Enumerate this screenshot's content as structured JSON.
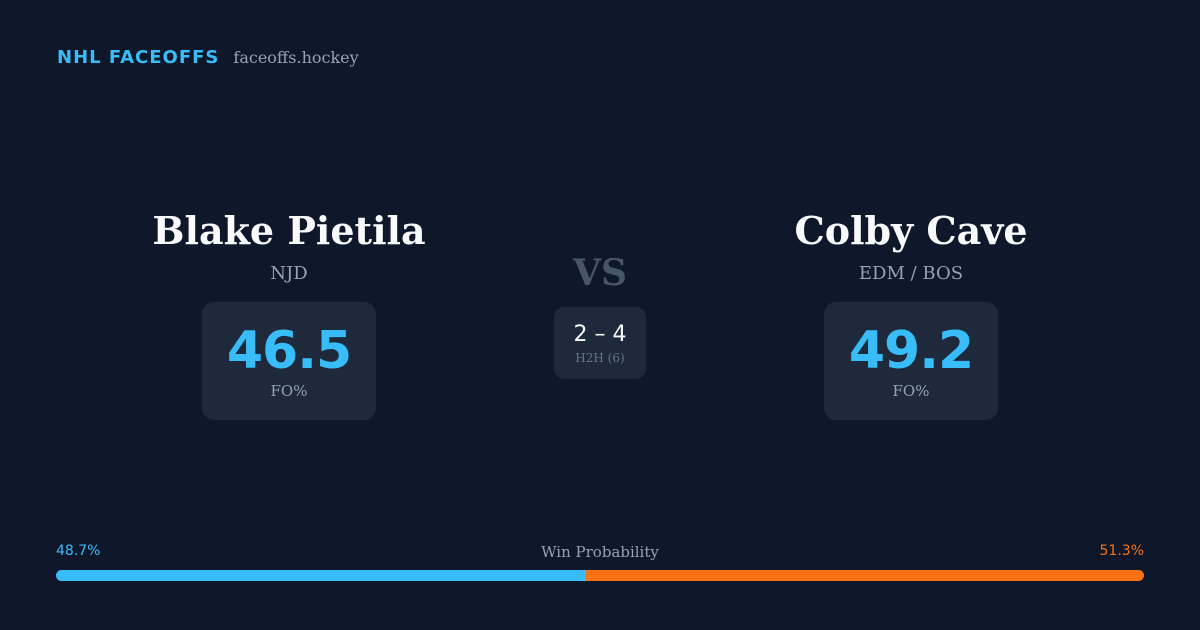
{
  "brand": {
    "name": "NHL FACEOFFS",
    "url": "faceoffs.hockey"
  },
  "players": [
    {
      "name": "Blake Pietila",
      "team": "NJD",
      "fo_value": "46.5",
      "fo_label": "FO%"
    },
    {
      "name": "Colby Cave",
      "team": "EDM / BOS",
      "fo_value": "49.2",
      "fo_label": "FO%"
    }
  ],
  "versus": {
    "label": "VS",
    "h2h_score": "2 – 4",
    "h2h_label": "H2H (6)"
  },
  "win_probability": {
    "title": "Win Probability",
    "left_label": "48.7%",
    "right_label": "51.3%",
    "left_fraction": 0.487,
    "right_fraction": 0.513
  },
  "colors": {
    "background": "#0f172a",
    "card": "#1e293b",
    "accent_blue": "#38bdf8",
    "accent_orange": "#f97316",
    "muted": "#94a3b8"
  }
}
